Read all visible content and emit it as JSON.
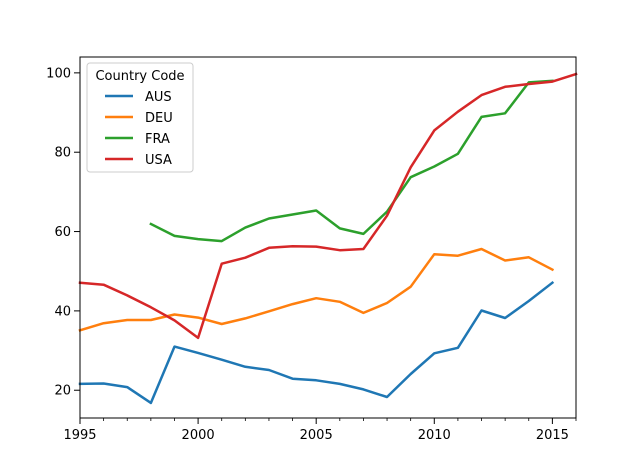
{
  "chart_data": {
    "type": "line",
    "title": "",
    "xlabel": "",
    "ylabel": "",
    "xlim": [
      1995,
      2016
    ],
    "ylim": [
      13,
      104
    ],
    "x_major_ticks": [
      1995,
      2000,
      2005,
      2010,
      2015
    ],
    "x_minor_ticks": [
      1996,
      1997,
      1998,
      1999,
      2001,
      2002,
      2003,
      2004,
      2006,
      2007,
      2008,
      2009,
      2011,
      2012,
      2013,
      2014,
      2016
    ],
    "y_ticks": [
      20,
      40,
      60,
      80,
      100
    ],
    "grid": false,
    "legend": {
      "title": "Country Code",
      "placement": "top-left"
    },
    "x": [
      1995,
      1996,
      1997,
      1998,
      1999,
      2000,
      2001,
      2002,
      2003,
      2004,
      2005,
      2006,
      2007,
      2008,
      2009,
      2010,
      2011,
      2012,
      2013,
      2014,
      2015,
      2016
    ],
    "series": [
      {
        "name": "AUS",
        "color": "#1f77b4",
        "values": [
          21.6,
          21.7,
          20.8,
          16.8,
          31.0,
          29.4,
          27.7,
          25.9,
          25.1,
          22.9,
          22.5,
          21.6,
          20.2,
          18.3,
          24.1,
          29.3,
          30.7,
          40.1,
          38.2,
          42.5,
          47.1,
          null
        ]
      },
      {
        "name": "DEU",
        "color": "#ff7f0e",
        "values": [
          35.1,
          36.9,
          37.7,
          37.7,
          39.1,
          38.3,
          36.7,
          38.1,
          39.9,
          41.7,
          43.2,
          42.3,
          39.5,
          42.0,
          46.1,
          54.3,
          53.9,
          55.6,
          52.7,
          53.5,
          50.4,
          null
        ]
      },
      {
        "name": "FRA",
        "color": "#2ca02c",
        "values": [
          null,
          null,
          null,
          61.9,
          58.9,
          58.1,
          57.6,
          61.0,
          63.3,
          64.3,
          65.3,
          60.8,
          59.4,
          65.0,
          73.7,
          76.4,
          79.6,
          88.9,
          89.8,
          97.6,
          98.0,
          null
        ]
      },
      {
        "name": "USA",
        "color": "#d62728",
        "values": [
          47.1,
          46.6,
          43.9,
          40.9,
          37.6,
          33.2,
          51.9,
          53.4,
          55.9,
          56.3,
          56.2,
          55.3,
          55.6,
          64.0,
          76.2,
          85.5,
          90.2,
          94.4,
          96.5,
          97.2,
          97.8,
          99.7
        ]
      }
    ]
  }
}
